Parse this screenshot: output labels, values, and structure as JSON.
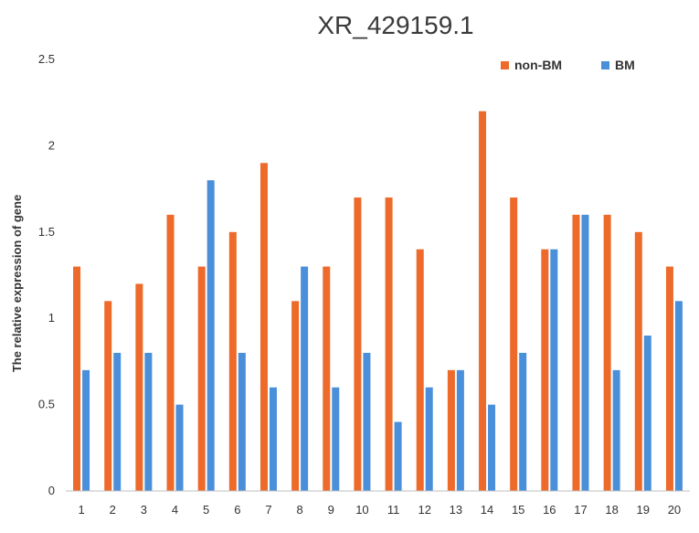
{
  "chart_data": {
    "type": "bar",
    "title": "XR_429159.1",
    "xlabel": "",
    "ylabel": "The relative expression of gene",
    "categories": [
      "1",
      "2",
      "3",
      "4",
      "5",
      "6",
      "7",
      "8",
      "9",
      "10",
      "11",
      "12",
      "13",
      "14",
      "15",
      "16",
      "17",
      "18",
      "19",
      "20"
    ],
    "series": [
      {
        "name": "non-BM",
        "color": "#ED6A2A",
        "values": [
          1.3,
          1.1,
          1.2,
          1.6,
          1.3,
          1.5,
          1.9,
          1.1,
          1.3,
          1.7,
          1.7,
          1.4,
          0.7,
          2.2,
          1.7,
          1.4,
          1.6,
          1.6,
          1.5,
          1.3
        ]
      },
      {
        "name": "BM",
        "color": "#4A8FD9",
        "values": [
          0.7,
          0.8,
          0.8,
          0.5,
          1.8,
          0.8,
          0.6,
          1.3,
          0.6,
          0.8,
          0.4,
          0.6,
          0.7,
          0.5,
          0.8,
          1.4,
          1.6,
          0.7,
          0.9,
          1.1
        ]
      }
    ],
    "ylim": [
      0,
      2.5
    ],
    "yticks": [
      "0",
      "0.5",
      "1",
      "1.5",
      "2",
      "2.5"
    ],
    "grid": false,
    "legend_position": "top-right"
  }
}
